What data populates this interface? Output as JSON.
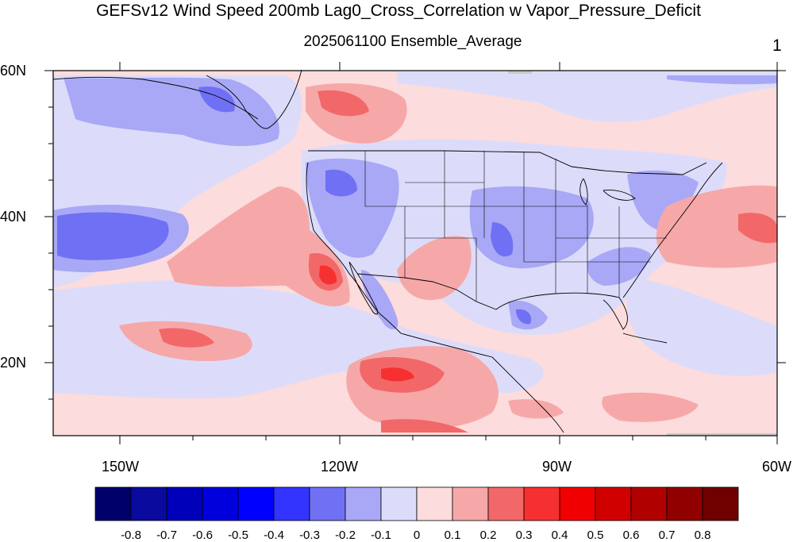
{
  "title": "GEFSv12 Wind Speed 200mb Lag0_Cross_Correlation w Vapor_Pressure_Deficit",
  "subtitle": "2025061100 Ensemble_Average",
  "panel_number": "1",
  "lat_labels": [
    "60N",
    "40N",
    "20N"
  ],
  "lon_labels": [
    "150W",
    "120W",
    "90W",
    "60W"
  ],
  "colorbar": {
    "labels": [
      "-0.8",
      "-0.7",
      "-0.6",
      "-0.5",
      "-0.4",
      "-0.3",
      "-0.2",
      "-0.1",
      "0",
      "0.1",
      "0.2",
      "0.3",
      "0.4",
      "0.5",
      "0.6",
      "0.7",
      "0.8"
    ],
    "colors": [
      "#00006b",
      "#0a0a9e",
      "#0000bb",
      "#0000dd",
      "#0000ff",
      "#3434ff",
      "#7070f4",
      "#a8a8f6",
      "#dcdcfa",
      "#fcdcdc",
      "#f6a8a8",
      "#f26868",
      "#f63030",
      "#f00000",
      "#d00000",
      "#b00000",
      "#900000",
      "#700000"
    ]
  },
  "map": {
    "region": "North Pacific and contiguous United States, 10N-60N, 160W-60W",
    "background_color": "#fcdcdc"
  }
}
